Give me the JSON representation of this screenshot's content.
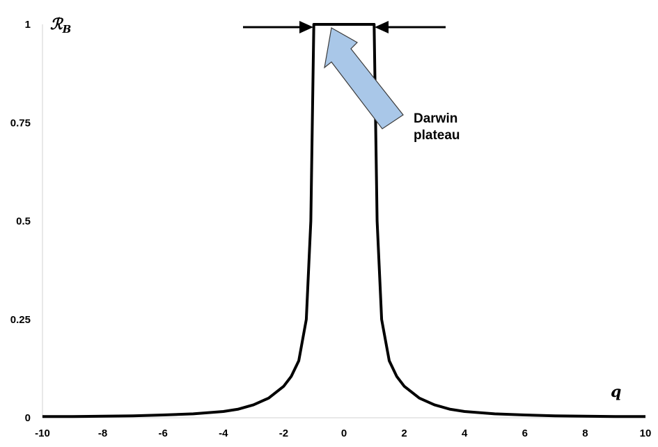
{
  "chart_data": {
    "type": "line",
    "xlabel": "q",
    "ylabel": "ℛ",
    "ylabel_sub": "B",
    "xlim": [
      -10,
      10
    ],
    "ylim": [
      0,
      1
    ],
    "xticks": [
      "-10",
      "-8",
      "-6",
      "-4",
      "-2",
      "0",
      "2",
      "4",
      "6",
      "8",
      "10"
    ],
    "yticks": [
      "0",
      "0.25",
      "0.5",
      "0.75",
      "1"
    ],
    "grid": false,
    "series": [
      {
        "x": [
          -10,
          -9,
          -8,
          -7,
          -6,
          -5,
          -4,
          -3.5,
          -3,
          -2.5,
          -2,
          -1.75,
          -1.5,
          -1.25,
          -1.1,
          -1,
          1,
          1.1,
          1.25,
          1.5,
          1.75,
          2,
          2.5,
          3,
          3.5,
          4,
          5,
          6,
          7,
          8,
          9,
          10
        ],
        "y": [
          0.003,
          0.003,
          0.004,
          0.005,
          0.007,
          0.01,
          0.016,
          0.022,
          0.033,
          0.05,
          0.08,
          0.105,
          0.145,
          0.25,
          0.5,
          1,
          1,
          0.5,
          0.25,
          0.145,
          0.105,
          0.08,
          0.05,
          0.033,
          0.022,
          0.016,
          0.01,
          0.007,
          0.005,
          0.004,
          0.003,
          0.003
        ]
      }
    ],
    "annotations": [
      {
        "text_lines": [
          "Darwin",
          "plateau"
        ]
      }
    ]
  }
}
